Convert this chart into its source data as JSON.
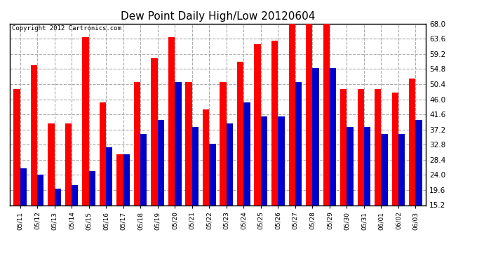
{
  "title": "Dew Point Daily High/Low 20120604",
  "copyright": "Copyright 2012 Cartronics.com",
  "categories": [
    "05/11",
    "05/12",
    "05/13",
    "05/14",
    "05/15",
    "05/16",
    "05/17",
    "05/18",
    "05/19",
    "05/20",
    "05/21",
    "05/22",
    "05/23",
    "05/24",
    "05/25",
    "05/26",
    "05/27",
    "05/28",
    "05/29",
    "05/30",
    "05/31",
    "06/01",
    "06/02",
    "06/03"
  ],
  "highs": [
    49.0,
    56.0,
    39.0,
    39.0,
    64.0,
    45.0,
    30.0,
    51.0,
    58.0,
    64.0,
    51.0,
    43.0,
    51.0,
    57.0,
    62.0,
    63.0,
    68.0,
    68.0,
    68.0,
    49.0,
    49.0,
    49.0,
    48.0,
    52.0
  ],
  "lows": [
    26.0,
    24.0,
    20.0,
    21.0,
    25.0,
    32.0,
    30.0,
    36.0,
    40.0,
    51.0,
    38.0,
    33.0,
    39.0,
    45.0,
    41.0,
    41.0,
    51.0,
    55.0,
    55.0,
    38.0,
    38.0,
    36.0,
    36.0,
    40.0
  ],
  "high_color": "#ff0000",
  "low_color": "#0000cc",
  "bg_color": "#ffffff",
  "grid_color": "#aaaaaa",
  "ylim_min": 15.2,
  "ylim_max": 68.0,
  "yticks": [
    15.2,
    19.6,
    24.0,
    28.4,
    32.8,
    37.2,
    41.6,
    46.0,
    50.4,
    54.8,
    59.2,
    63.6,
    68.0
  ],
  "title_fontsize": 11,
  "copyright_fontsize": 6.5,
  "bar_width": 0.38,
  "figwidth": 6.9,
  "figheight": 3.75,
  "dpi": 100
}
